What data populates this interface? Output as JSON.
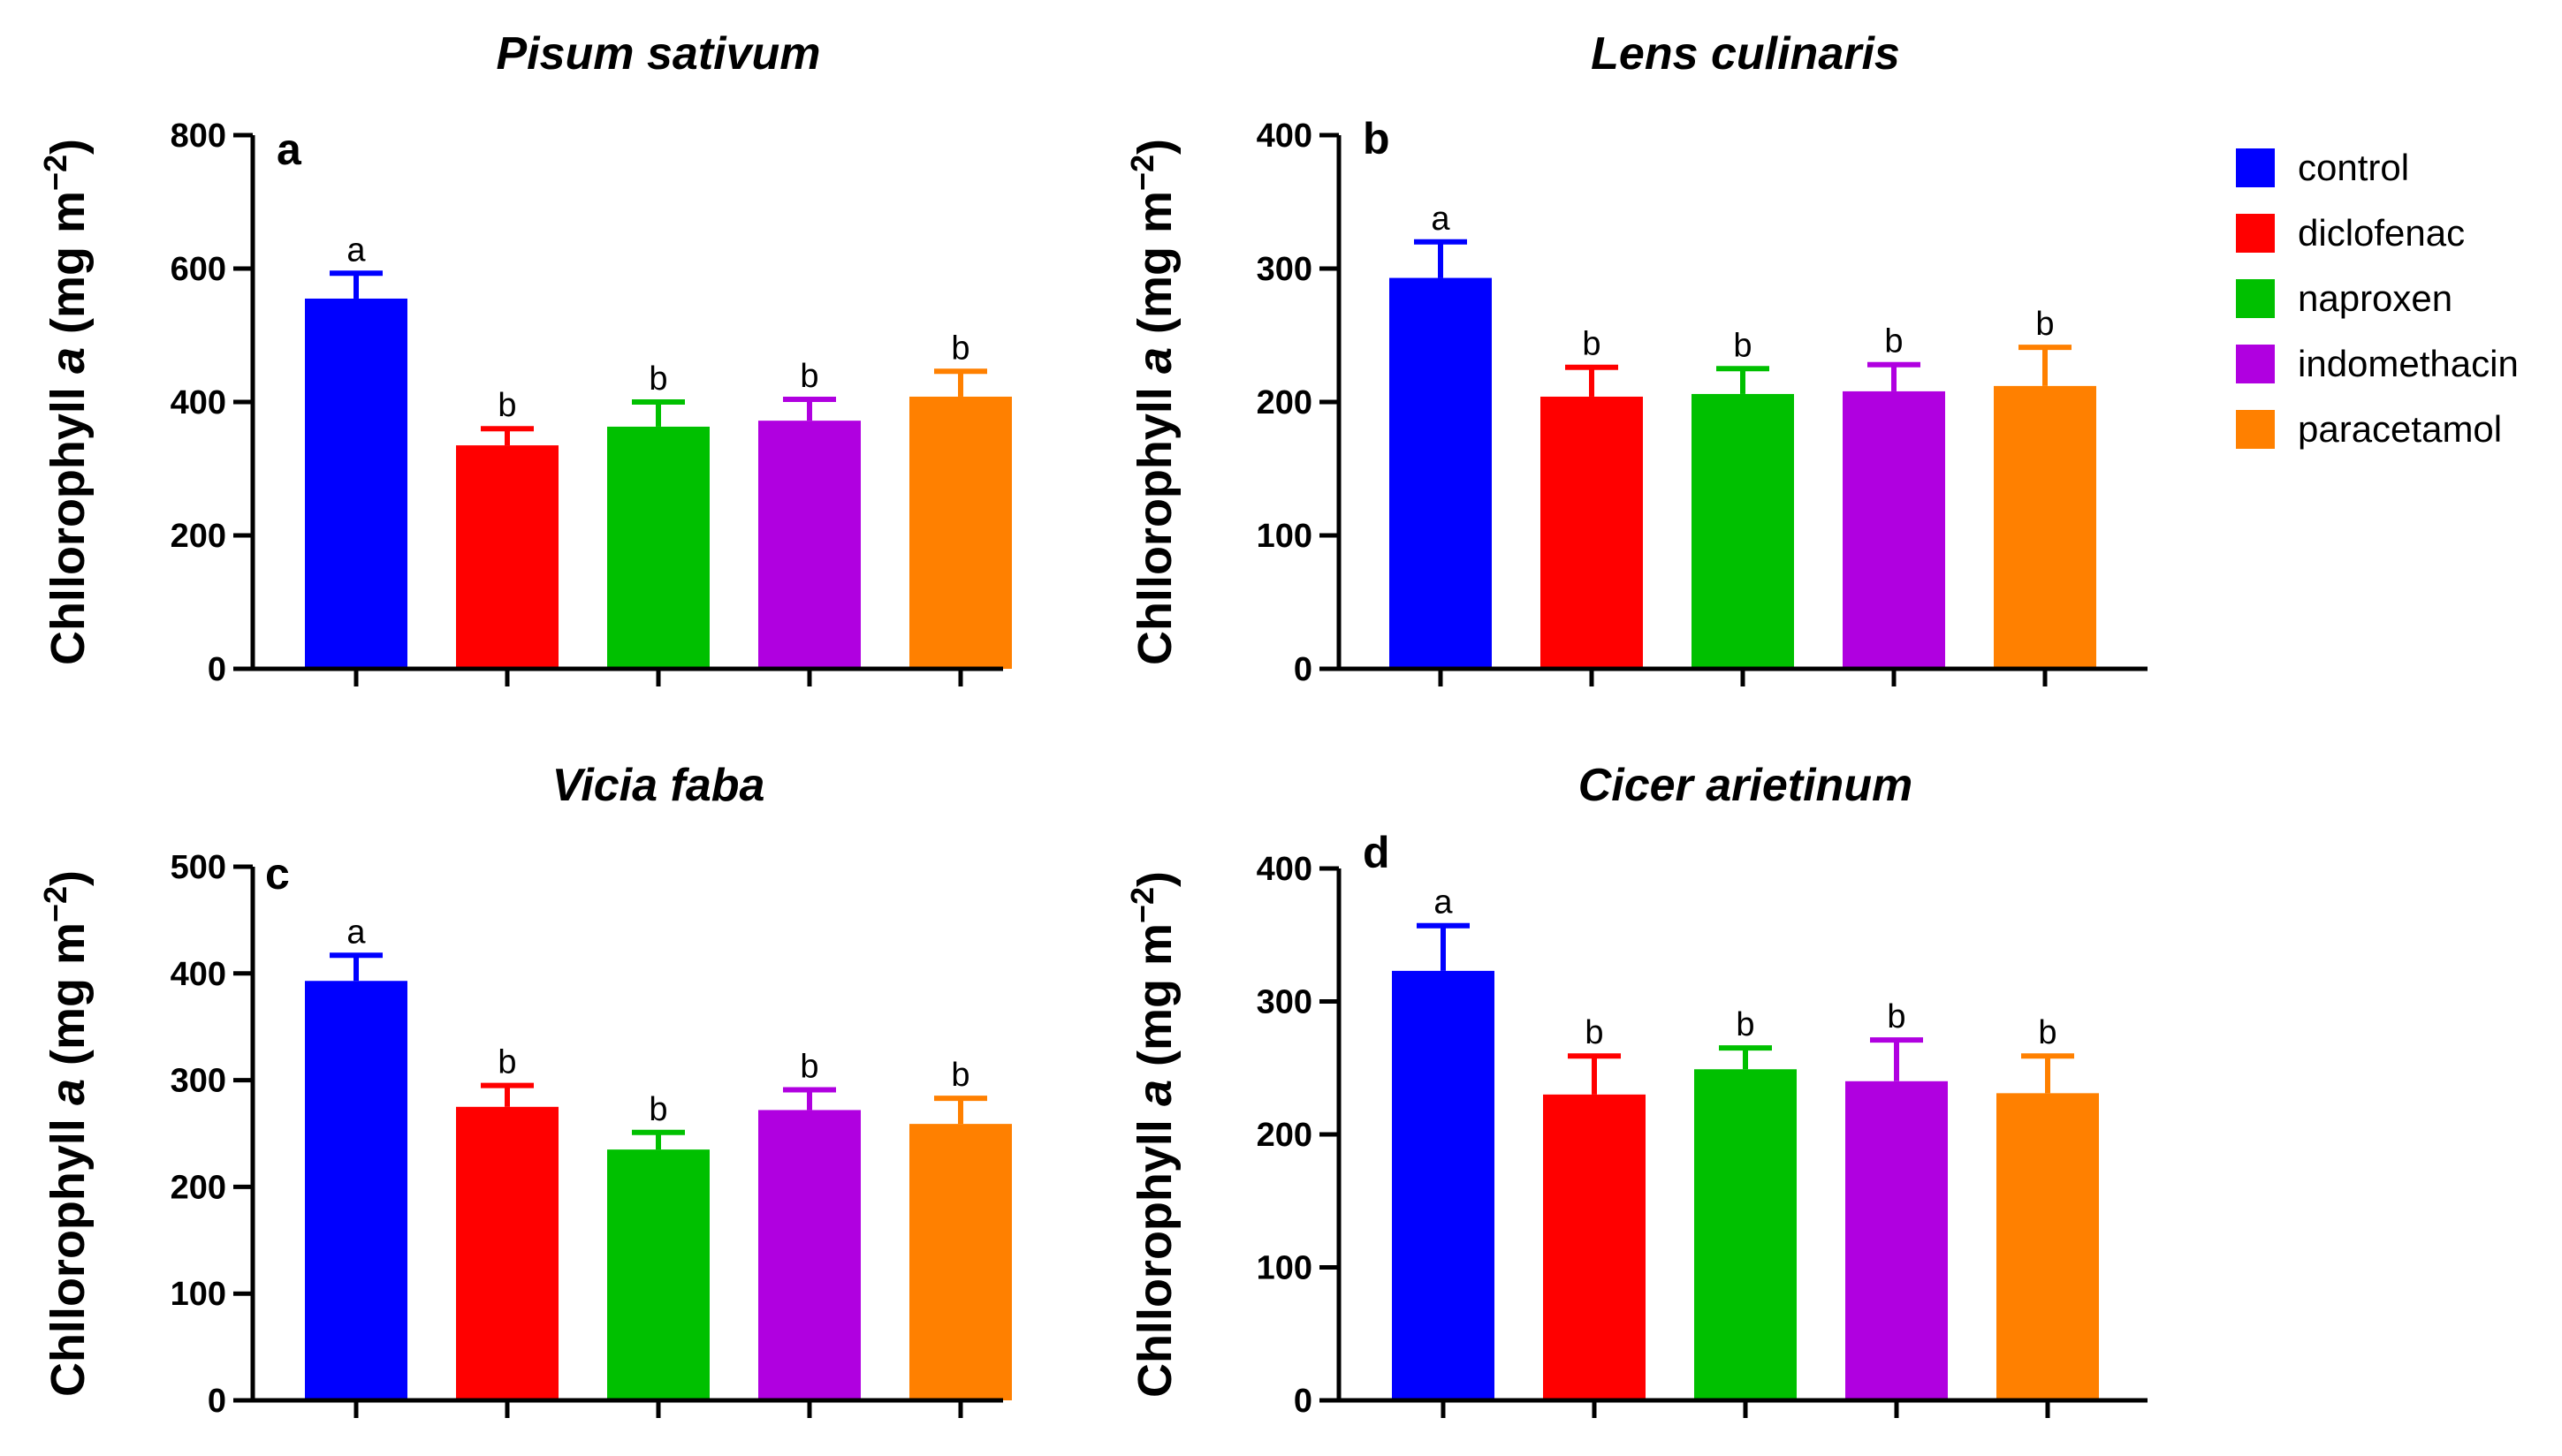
{
  "chart_data": [
    {
      "type": "bar",
      "panel": "a",
      "title": "Pisum sativum",
      "ylabel_main": "Chllorophyll ",
      "ylabel_italic": "a",
      "ylabel_unit": " (mg m",
      "ylabel_sup": "−2",
      "ylabel_close": ")",
      "ylim": [
        0,
        800
      ],
      "yticks": [
        "0",
        "200",
        "400",
        "600",
        "800"
      ],
      "categories": [
        "control",
        "diclofenac",
        "naproxen",
        "indomethacin",
        "paracetamol"
      ],
      "values": [
        555,
        335,
        363,
        372,
        408
      ],
      "errors": [
        38,
        25,
        37,
        32,
        38
      ],
      "significance": [
        "a",
        "b",
        "b",
        "b",
        "b"
      ]
    },
    {
      "type": "bar",
      "panel": "b",
      "title": "Lens culinaris",
      "ylabel_main": "Chllorophyll ",
      "ylabel_italic": "a",
      "ylabel_unit": " (mg m",
      "ylabel_sup": "−2",
      "ylabel_close": ")",
      "ylim": [
        0,
        400
      ],
      "yticks": [
        "0",
        "100",
        "200",
        "300",
        "400"
      ],
      "categories": [
        "control",
        "diclofenac",
        "naproxen",
        "indomethacin",
        "paracetamol"
      ],
      "values": [
        293,
        204,
        206,
        208,
        212
      ],
      "errors": [
        27,
        22,
        19,
        20,
        29
      ],
      "significance": [
        "a",
        "b",
        "b",
        "b",
        "b"
      ]
    },
    {
      "type": "bar",
      "panel": "c",
      "title": "Vicia faba",
      "ylabel_main": "Chllorophyll ",
      "ylabel_italic": "a",
      "ylabel_unit": " (mg m",
      "ylabel_sup": "−2",
      "ylabel_close": ")",
      "ylim": [
        0,
        500
      ],
      "yticks": [
        "0",
        "100",
        "200",
        "300",
        "400",
        "500"
      ],
      "categories": [
        "control",
        "diclofenac",
        "naproxen",
        "indomethacin",
        "paracetamol"
      ],
      "values": [
        393,
        275,
        235,
        272,
        259
      ],
      "errors": [
        24,
        20,
        16,
        19,
        24
      ],
      "significance": [
        "a",
        "b",
        "b",
        "b",
        "b"
      ]
    },
    {
      "type": "bar",
      "panel": "d",
      "title": "Cicer arietinum",
      "ylabel_main": "Chllorophyll ",
      "ylabel_italic": "a",
      "ylabel_unit": " (mg m",
      "ylabel_sup": "−2",
      "ylabel_close": ")",
      "ylim": [
        0,
        400
      ],
      "yticks": [
        "0",
        "100",
        "200",
        "300",
        "400"
      ],
      "categories": [
        "control",
        "diclofenac",
        "naproxen",
        "indomethacin",
        "paracetamol"
      ],
      "values": [
        323,
        230,
        249,
        240,
        231
      ],
      "errors": [
        34,
        29,
        16,
        31,
        28
      ],
      "significance": [
        "a",
        "b",
        "b",
        "b",
        "b"
      ]
    }
  ],
  "legend": {
    "entries": [
      {
        "label": "control",
        "color": "#0000ff"
      },
      {
        "label": "diclofenac",
        "color": "#ff0000"
      },
      {
        "label": "naproxen",
        "color": "#00c000"
      },
      {
        "label": "indomethacin",
        "color": "#b000e0"
      },
      {
        "label": "paracetamol",
        "color": "#ff8000"
      }
    ]
  }
}
